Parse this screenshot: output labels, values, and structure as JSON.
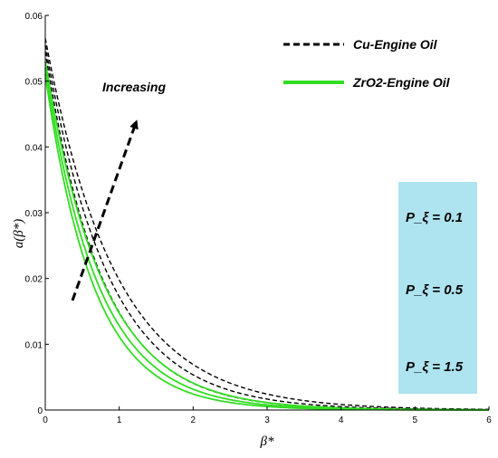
{
  "chart_data": {
    "type": "line",
    "xlabel": "β*",
    "ylabel": "a(β*)",
    "xlim": [
      0,
      6
    ],
    "ylim": [
      0,
      0.06
    ],
    "x_ticks": [
      "0",
      "1",
      "2",
      "3",
      "4",
      "5",
      "6"
    ],
    "y_ticks": [
      "0",
      "0.01",
      "0.02",
      "0.03",
      "0.04",
      "0.05",
      "0.06"
    ],
    "grid": false,
    "legend_position": "top-right",
    "legend": [
      {
        "label": "Cu-Engine Oil",
        "color": "#000000",
        "style": "dashed"
      },
      {
        "label": "ZrO2-Engine Oil",
        "color": "#33dd22",
        "style": "solid"
      }
    ],
    "annotation": "Increasing",
    "parameter_box": {
      "color": "#aee3f0",
      "labels": [
        "P_ξ = 0.1",
        "P_ξ = 0.5",
        "P_ξ = 1.5"
      ]
    },
    "series": [
      {
        "fluid": "Cu-Engine Oil",
        "p_xi": 0.1,
        "y0": 0.0565,
        "decay": 1.05
      },
      {
        "fluid": "Cu-Engine Oil",
        "p_xi": 0.5,
        "y0": 0.0555,
        "decay": 1.17
      },
      {
        "fluid": "Cu-Engine Oil",
        "p_xi": 1.5,
        "y0": 0.0545,
        "decay": 1.3
      },
      {
        "fluid": "ZrO2-Engine Oil",
        "p_xi": 0.1,
        "y0": 0.053,
        "decay": 1.28
      },
      {
        "fluid": "ZrO2-Engine Oil",
        "p_xi": 0.5,
        "y0": 0.052,
        "decay": 1.4
      },
      {
        "fluid": "ZrO2-Engine Oil",
        "p_xi": 1.5,
        "y0": 0.051,
        "decay": 1.52
      }
    ]
  }
}
